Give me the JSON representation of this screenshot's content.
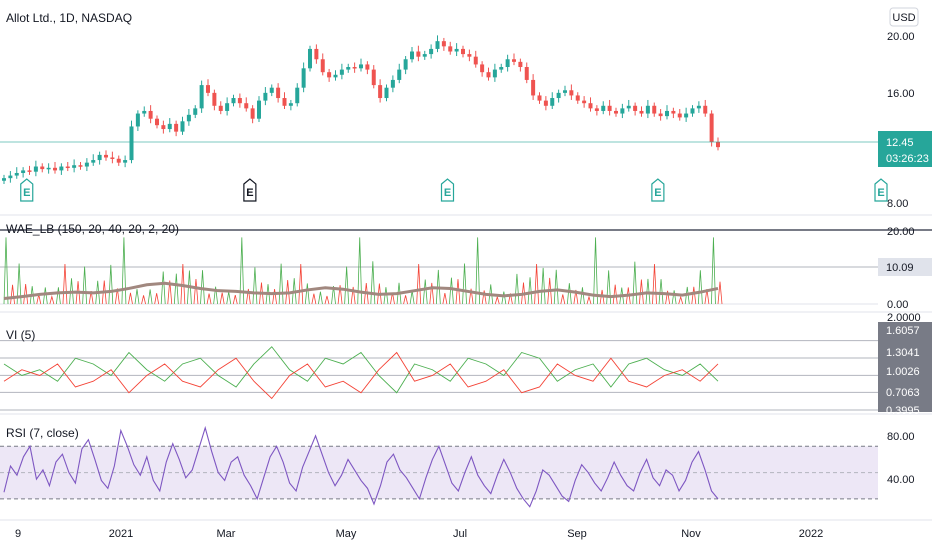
{
  "header": {
    "title": "Allot Ltd., 1D, NASDAQ",
    "currency": "USD"
  },
  "price_axis": {
    "ticks": [
      "20.00",
      "16.00",
      "8.00"
    ]
  },
  "last_price": {
    "value": "12.45",
    "countdown": "03:26:23",
    "color": "#26a69a"
  },
  "earnings_markers": [
    "E",
    "E",
    "E",
    "E",
    "E"
  ],
  "time_axis": {
    "labels": [
      "9",
      "2021",
      "Mar",
      "May",
      "Jul",
      "Sep",
      "Nov",
      "2022"
    ]
  },
  "wae": {
    "label": "WAE_LB (150, 20, 40, 20, 2, 20)",
    "axis_ticks": [
      "20.00",
      "0.00"
    ],
    "current_value": "10.09"
  },
  "vi": {
    "label": "VI (5)",
    "axis_ticks": [
      "2.0000",
      "1.6057",
      "1.3041",
      "1.0026",
      "0.7063",
      "0.3995"
    ]
  },
  "rsi": {
    "label": "RSI (7, close)",
    "axis_ticks": [
      "80.00",
      "40.00"
    ]
  },
  "colors": {
    "up": "#26a69a",
    "down": "#ef5350",
    "wae_up": "#4caf50",
    "wae_down": "#f44336",
    "wae_trend": "#a1887f",
    "rsi_line": "#7e57c2",
    "rsi_band": "#ede7f6",
    "grid_dark": "#787b86"
  },
  "chart_data": {
    "type": "candlestick",
    "title": "Allot Ltd., 1D, NASDAQ",
    "ylim": [
      8,
      21
    ],
    "close_series": [
      10.0,
      10.2,
      10.4,
      10.6,
      10.5,
      10.9,
      10.7,
      10.8,
      10.6,
      10.9,
      10.8,
      11.0,
      10.9,
      11.2,
      11.4,
      11.8,
      11.6,
      11.5,
      11.2,
      11.4,
      14.0,
      15.0,
      15.2,
      14.6,
      14.1,
      13.8,
      14.2,
      13.6,
      14.4,
      14.9,
      15.4,
      17.2,
      16.6,
      15.6,
      15.2,
      15.8,
      16.2,
      15.8,
      15.4,
      14.6,
      16.0,
      16.6,
      17.0,
      16.2,
      15.6,
      15.8,
      17.0,
      18.5,
      20.0,
      19.2,
      18.2,
      17.8,
      18.0,
      18.4,
      18.6,
      18.5,
      18.8,
      18.4,
      17.2,
      16.2,
      17.0,
      17.6,
      18.4,
      19.2,
      19.8,
      19.4,
      19.6,
      20.0,
      20.6,
      20.2,
      19.8,
      20.0,
      19.6,
      19.4,
      18.8,
      18.2,
      17.8,
      18.4,
      18.6,
      19.2,
      19.0,
      18.6,
      17.6,
      16.4,
      16.0,
      15.6,
      16.2,
      16.6,
      16.8,
      16.4,
      16.0,
      15.8,
      15.4,
      15.2,
      15.6,
      15.2,
      15.0,
      15.4,
      15.6,
      15.2,
      15.0,
      15.6,
      15.0,
      14.8,
      15.2,
      15.0,
      14.7,
      15.0,
      15.4,
      15.6,
      15.0,
      12.8,
      12.4
    ],
    "earnings_index": [
      2,
      37,
      68,
      101,
      136
    ],
    "wae": {
      "ylim": [
        0,
        20
      ],
      "trend_line": [
        1.5,
        2.0,
        2.6,
        3.0,
        3.2,
        3.0,
        3.4,
        4.2,
        5.2,
        5.6,
        5.0,
        4.2,
        3.6,
        3.4,
        3.0,
        2.8,
        3.0,
        3.8,
        4.4,
        4.0,
        3.2,
        2.6,
        2.8,
        3.6,
        4.4,
        4.2,
        3.4,
        2.6,
        2.2,
        2.6,
        3.4,
        3.8,
        3.2,
        2.4,
        2.0,
        2.4,
        3.0,
        2.8,
        2.4,
        3.2,
        4.2
      ],
      "current": 10.09
    },
    "vi": {
      "ylim": [
        0.3995,
        2.0
      ],
      "plus_series": [
        1.2,
        1.0,
        1.1,
        0.9,
        1.3,
        1.2,
        1.0,
        1.4,
        1.1,
        0.9,
        1.2,
        1.3,
        1.0,
        0.8,
        1.2,
        1.5,
        1.1,
        0.9,
        1.3,
        1.2,
        1.4,
        1.0,
        0.7,
        1.2,
        1.1,
        0.9,
        1.3,
        1.2,
        1.0,
        1.4,
        1.3,
        0.9,
        1.1,
        1.2,
        0.8,
        1.2,
        1.3,
        1.1,
        1.0,
        1.2,
        0.9
      ],
      "minus_series": [
        0.9,
        1.1,
        1.0,
        1.2,
        0.8,
        0.9,
        1.1,
        0.7,
        1.0,
        1.2,
        0.9,
        0.8,
        1.1,
        1.3,
        0.9,
        0.6,
        1.0,
        1.2,
        0.8,
        0.9,
        0.7,
        1.1,
        1.4,
        0.9,
        1.0,
        1.2,
        0.8,
        0.9,
        1.1,
        0.7,
        0.8,
        1.2,
        1.0,
        0.9,
        1.3,
        0.9,
        0.8,
        1.0,
        1.1,
        0.9,
        1.2
      ],
      "levels": [
        1.6057,
        1.3041,
        1.0026,
        0.7063,
        0.3995
      ]
    },
    "rsi": {
      "ylim": [
        20,
        90
      ],
      "bands": [
        70,
        30
      ],
      "series": [
        35,
        55,
        48,
        62,
        70,
        45,
        52,
        40,
        58,
        64,
        50,
        42,
        68,
        75,
        60,
        44,
        38,
        55,
        82,
        70,
        56,
        48,
        62,
        44,
        36,
        58,
        72,
        60,
        46,
        52,
        68,
        84,
        66,
        50,
        44,
        58,
        62,
        48,
        40,
        30,
        46,
        62,
        70,
        58,
        42,
        36,
        54,
        66,
        78,
        64,
        50,
        40,
        48,
        60,
        52,
        44,
        38,
        26,
        40,
        58,
        64,
        52,
        46,
        38,
        30,
        46,
        60,
        70,
        56,
        42,
        36,
        50,
        62,
        48,
        40,
        34,
        48,
        60,
        50,
        38,
        30,
        24,
        36,
        52,
        48,
        40,
        32,
        28,
        44,
        56,
        50,
        42,
        36,
        46,
        58,
        48,
        40,
        36,
        50,
        60,
        46,
        40,
        52,
        48,
        36,
        44,
        58,
        66,
        52,
        36,
        30
      ]
    }
  }
}
